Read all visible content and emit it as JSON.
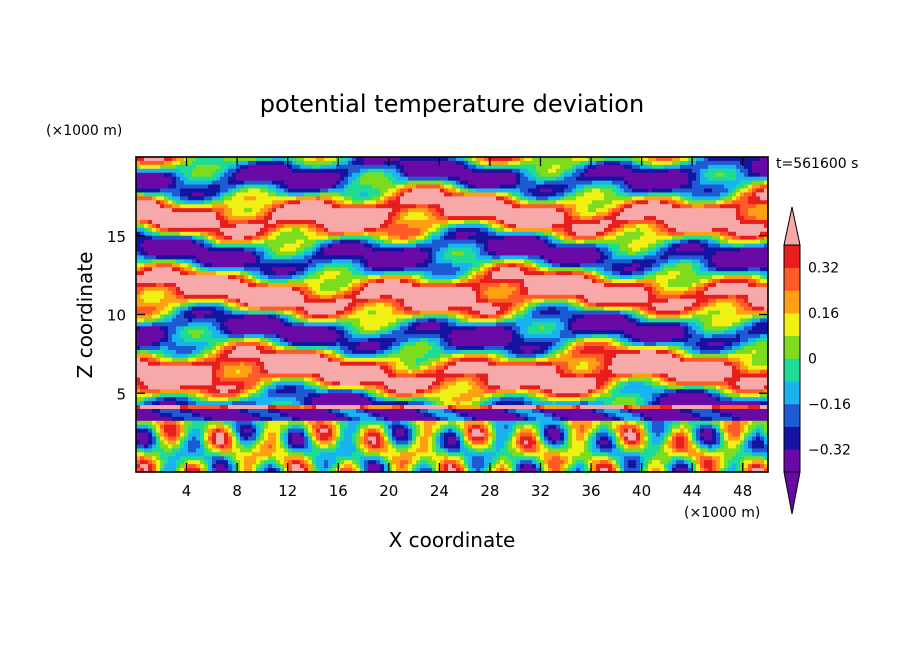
{
  "chart_data": {
    "type": "heatmap",
    "title": "potential temperature deviation",
    "xlabel": "X coordinate",
    "ylabel": "Z coordinate",
    "x_unit": "(×1000 m)",
    "y_unit": "(×1000 m)",
    "time_label": "t=561600 s",
    "xlim": [
      0,
      50
    ],
    "ylim": [
      0,
      20
    ],
    "x_ticks": [
      4,
      8,
      12,
      16,
      20,
      24,
      28,
      32,
      36,
      40,
      44,
      48
    ],
    "x_tick_labels": [
      "4",
      "8",
      "12",
      "16",
      "20",
      "24",
      "28",
      "32",
      "36",
      "40",
      "44",
      "48"
    ],
    "y_ticks": [
      5,
      10,
      15
    ],
    "y_tick_labels": [
      "5",
      "10",
      "15"
    ],
    "colorbar": {
      "levels": [
        -0.4,
        -0.32,
        -0.24,
        -0.16,
        -0.08,
        0,
        0.08,
        0.16,
        0.24,
        0.32,
        0.4
      ],
      "labeled_levels": [
        0.32,
        0.16,
        0,
        -0.16,
        -0.32
      ],
      "labels": [
        "0.32",
        "0.16",
        "0",
        "−0.16",
        "−0.32"
      ],
      "colors": [
        "#6a0aa6",
        "#1414a0",
        "#1e5ad2",
        "#19b4f0",
        "#1edc96",
        "#7ddc1e",
        "#f0f014",
        "#ffa014",
        "#ff5a28",
        "#e81e1e",
        "#f7a8a8"
      ],
      "extend": "both"
    },
    "grid": false
  }
}
